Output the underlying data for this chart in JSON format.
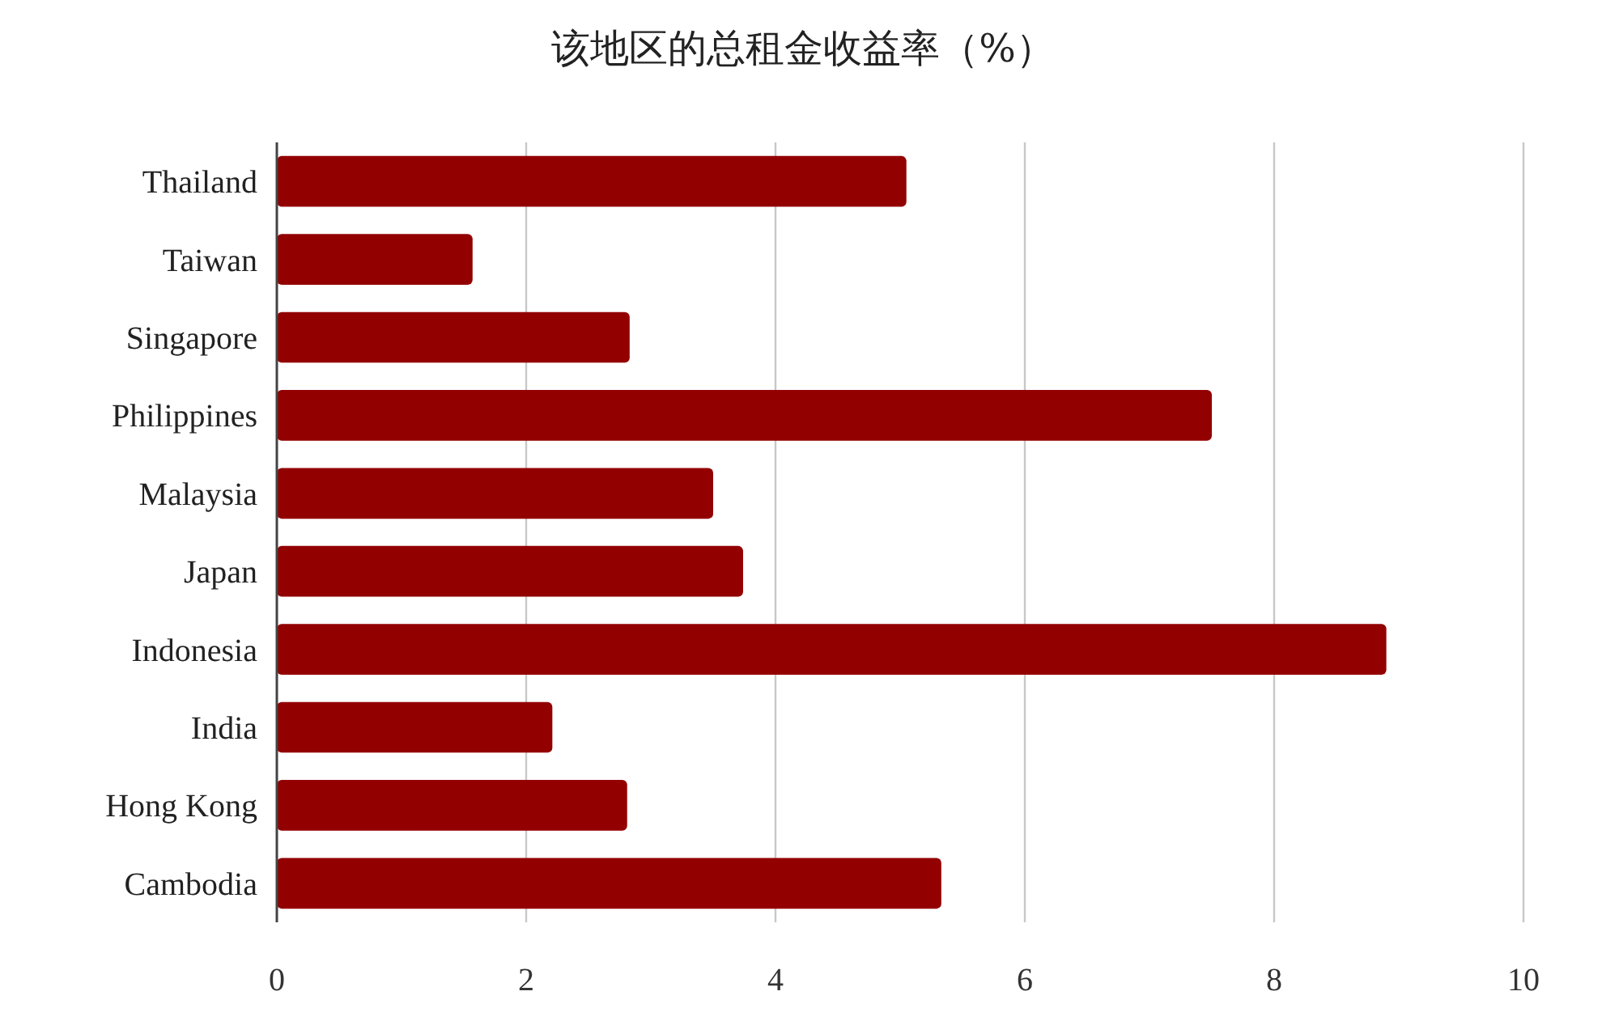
{
  "chart_data": {
    "type": "bar",
    "orientation": "horizontal",
    "title": "该地区的总租金收益率（%）",
    "categories": [
      "Thailand",
      "Taiwan",
      "Singapore",
      "Philippines",
      "Malaysia",
      "Japan",
      "Indonesia",
      "India",
      "Hong Kong",
      "Cambodia"
    ],
    "values": [
      5.05,
      1.57,
      2.83,
      7.5,
      3.5,
      3.74,
      8.9,
      2.21,
      2.81,
      5.33
    ],
    "color": "#930000",
    "xlim": [
      0,
      10
    ],
    "xticks": [
      0,
      2,
      4,
      6,
      8,
      10
    ],
    "grid": "x"
  }
}
